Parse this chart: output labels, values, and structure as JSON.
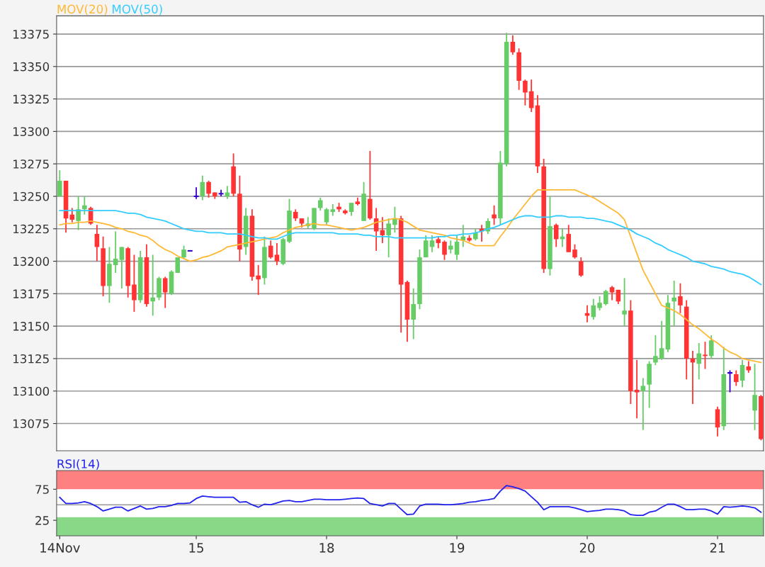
{
  "chart_data": [
    {
      "type": "candlestick",
      "tick_labels": "y",
      "grid": "y",
      "ylim": [
        13054,
        13389
      ],
      "yticks": [
        13075,
        13100,
        13125,
        13150,
        13175,
        13200,
        13225,
        13250,
        13275,
        13300,
        13325,
        13350,
        13375
      ],
      "categories": [
        null,
        null,
        null,
        null,
        null,
        null,
        null,
        null,
        null,
        null,
        null,
        null,
        null,
        null,
        null,
        null,
        null,
        null,
        null,
        null,
        null,
        null,
        null,
        null,
        null,
        null,
        null,
        null,
        null,
        null,
        null,
        null,
        null,
        null,
        null,
        null,
        null,
        null,
        null,
        null,
        null,
        null,
        null,
        null,
        null,
        null,
        null,
        null,
        null,
        null,
        null,
        null,
        null,
        null,
        null,
        null,
        null,
        null,
        null,
        null,
        null,
        null,
        null,
        null,
        null,
        null,
        null,
        null,
        null,
        null,
        null,
        null,
        null,
        null,
        null,
        null,
        null,
        null,
        null,
        null,
        null,
        null,
        null,
        null,
        null,
        null,
        null,
        null,
        null,
        null,
        null,
        null,
        null,
        null,
        null,
        null,
        null,
        null,
        null,
        null,
        null,
        null,
        null,
        null,
        null,
        null,
        null,
        null,
        null,
        null,
        null,
        null,
        null,
        null
      ],
      "ohlc": [
        [
          13250,
          13270,
          13250,
          13262
        ],
        [
          13262,
          13262,
          13222,
          13233
        ],
        [
          13236,
          13241,
          13230,
          13232
        ],
        [
          13231,
          13250,
          13224,
          13240
        ],
        [
          13240,
          13250,
          13236,
          13243
        ],
        [
          13241,
          13242,
          13228,
          13229
        ],
        [
          13221,
          13228,
          13200,
          13211
        ],
        [
          13210,
          13219,
          13173,
          13181
        ],
        [
          13181,
          13211,
          13168,
          13198
        ],
        [
          13197,
          13223,
          13191,
          13202
        ],
        [
          13201,
          13211,
          13179,
          13211
        ],
        [
          13210,
          13211,
          13172,
          13181
        ],
        [
          13182,
          13205,
          13161,
          13170
        ],
        [
          13170,
          13208,
          13168,
          13203
        ],
        [
          13203,
          13213,
          13165,
          13167
        ],
        [
          13169,
          13205,
          13158,
          13172
        ],
        [
          13172,
          13188,
          13170,
          13187
        ],
        [
          13187,
          13188,
          13164,
          13176
        ],
        [
          13175,
          13193,
          13174,
          13192
        ],
        [
          13191,
          13203,
          13191,
          13203
        ],
        [
          13203,
          13212,
          13202,
          13209
        ],
        [
          13208,
          13208,
          13208,
          13208
        ],
        [
          13250,
          13257,
          13248,
          13250
        ],
        [
          13250,
          13266,
          13247,
          13261
        ],
        [
          13261,
          13262,
          13249,
          13252
        ],
        [
          13253,
          13253,
          13248,
          13250
        ],
        [
          13252,
          13255,
          13250,
          13252
        ],
        [
          13250,
          13258,
          13248,
          13253
        ],
        [
          13273,
          13283,
          13250,
          13252
        ],
        [
          13252,
          13266,
          13200,
          13209
        ],
        [
          13211,
          13241,
          13205,
          13235
        ],
        [
          13235,
          13240,
          13185,
          13188
        ],
        [
          13189,
          13197,
          13174,
          13186
        ],
        [
          13187,
          13219,
          13182,
          13211
        ],
        [
          13212,
          13216,
          13202,
          13203
        ],
        [
          13205,
          13214,
          13197,
          13200
        ],
        [
          13198,
          13218,
          13197,
          13217
        ],
        [
          13215,
          13248,
          13214,
          13239
        ],
        [
          13238,
          13240,
          13231,
          13233
        ],
        [
          13233,
          13233,
          13226,
          13229
        ],
        [
          13227,
          13234,
          13225,
          13229
        ],
        [
          13225,
          13241,
          13224,
          13241
        ],
        [
          13241,
          13249,
          13239,
          13247
        ],
        [
          13230,
          13241,
          13228,
          13240
        ],
        [
          13238,
          13244,
          13235,
          13240
        ],
        [
          13242,
          13245,
          13238,
          13240
        ],
        [
          13239,
          13240,
          13236,
          13237
        ],
        [
          13238,
          13245,
          13235,
          13245
        ],
        [
          13246,
          13249,
          13243,
          13244
        ],
        [
          13231,
          13261,
          13231,
          13252
        ],
        [
          13248,
          13285,
          13232,
          13233
        ],
        [
          13233,
          13241,
          13208,
          13223
        ],
        [
          13224,
          13234,
          13214,
          13220
        ],
        [
          13220,
          13233,
          13203,
          13229
        ],
        [
          13228,
          13242,
          13222,
          13233
        ],
        [
          13233,
          13235,
          13145,
          13182
        ],
        [
          13184,
          13185,
          13138,
          13155
        ],
        [
          13155,
          13179,
          13140,
          13167
        ],
        [
          13167,
          13209,
          13163,
          13203
        ],
        [
          13203,
          13220,
          13203,
          13216
        ],
        [
          13211,
          13220,
          13207,
          13216
        ],
        [
          13217,
          13219,
          13210,
          13214
        ],
        [
          13215,
          13216,
          13201,
          13205
        ],
        [
          13209,
          13216,
          13206,
          13212
        ],
        [
          13205,
          13220,
          13201,
          13215
        ],
        [
          13216,
          13228,
          13211,
          13219
        ],
        [
          13218,
          13220,
          13215,
          13216
        ],
        [
          13217,
          13225,
          13216,
          13222
        ],
        [
          13225,
          13228,
          13215,
          13223
        ],
        [
          13223,
          13233,
          13221,
          13231
        ],
        [
          13236,
          13243,
          13228,
          13233
        ],
        [
          13233,
          13285,
          13228,
          13276
        ],
        [
          13275,
          13376,
          13273,
          13369
        ],
        [
          13369,
          13374,
          13359,
          13361
        ],
        [
          13361,
          13364,
          13332,
          13339
        ],
        [
          13339,
          13340,
          13320,
          13330
        ],
        [
          13331,
          13340,
          13315,
          13318
        ],
        [
          13320,
          13328,
          13268,
          13273
        ],
        [
          13273,
          13279,
          13191,
          13194
        ],
        [
          13194,
          13250,
          13189,
          13227
        ],
        [
          13228,
          13229,
          13211,
          13217
        ],
        [
          13217,
          13225,
          13211,
          13219
        ],
        [
          13221,
          13228,
          13207,
          13207
        ],
        [
          13209,
          13213,
          13202,
          13203
        ],
        [
          13200,
          13203,
          13188,
          13189
        ],
        [
          13160,
          13166,
          13153,
          13158
        ],
        [
          13157,
          13171,
          13155,
          13166
        ],
        [
          13164,
          13173,
          13162,
          13168
        ],
        [
          13167,
          13178,
          13166,
          13177
        ],
        [
          13180,
          13181,
          13170,
          13176
        ],
        [
          13178,
          13178,
          13167,
          13169
        ],
        [
          13159,
          13187,
          13150,
          13162
        ],
        [
          13162,
          13170,
          13090,
          13100
        ],
        [
          13101,
          13124,
          13079,
          13099
        ],
        [
          13100,
          13110,
          13070,
          13104
        ],
        [
          13105,
          13123,
          13087,
          13121
        ],
        [
          13122,
          13143,
          13120,
          13127
        ],
        [
          13125,
          13154,
          13124,
          13133
        ],
        [
          13132,
          13174,
          13130,
          13168
        ],
        [
          13169,
          13185,
          13150,
          13172
        ],
        [
          13173,
          13183,
          13160,
          13166
        ],
        [
          13165,
          13170,
          13109,
          13125
        ],
        [
          13125,
          13131,
          13090,
          13122
        ],
        [
          13121,
          13137,
          13109,
          13129
        ],
        [
          13128,
          13138,
          13117,
          13127
        ],
        [
          13127,
          13143,
          13125,
          13139
        ],
        [
          13086,
          13088,
          13065,
          13072
        ],
        [
          13073,
          13134,
          13070,
          13113
        ],
        [
          13114,
          13116,
          13099,
          13114
        ],
        [
          13113,
          13116,
          13104,
          13107
        ],
        [
          13108,
          13124,
          13103,
          13120
        ],
        [
          13119,
          13123,
          13114,
          13116
        ],
        [
          13085,
          13121,
          13070,
          13097
        ],
        [
          13096,
          13097,
          13062,
          13063
        ]
      ],
      "colors": [
        "#66cc66",
        "#ff3333",
        "#ff3333",
        "#66cc66",
        "#66cc66",
        "#ff3333",
        "#ff3333",
        "#ff3333",
        "#66cc66",
        "#66cc66",
        "#66cc66",
        "#ff3333",
        "#ff3333",
        "#66cc66",
        "#ff3333",
        "#66cc66",
        "#66cc66",
        "#ff3333",
        "#66cc66",
        "#66cc66",
        "#66cc66",
        "#3300cc",
        "#3300cc",
        "#66cc66",
        "#ff3333",
        "#ff3333",
        "#3300cc",
        "#66cc66",
        "#ff3333",
        "#ff3333",
        "#66cc66",
        "#ff3333",
        "#ff3333",
        "#66cc66",
        "#ff3333",
        "#ff3333",
        "#66cc66",
        "#66cc66",
        "#ff3333",
        "#ff3333",
        "#66cc66",
        "#66cc66",
        "#66cc66",
        "#66cc66",
        "#66cc66",
        "#ff3333",
        "#ff3333",
        "#66cc66",
        "#ff3333",
        "#66cc66",
        "#ff3333",
        "#ff3333",
        "#ff3333",
        "#66cc66",
        "#66cc66",
        "#ff3333",
        "#ff3333",
        "#66cc66",
        "#66cc66",
        "#66cc66",
        "#66cc66",
        "#ff3333",
        "#ff3333",
        "#66cc66",
        "#66cc66",
        "#66cc66",
        "#ff3333",
        "#66cc66",
        "#ff3333",
        "#66cc66",
        "#ff3333",
        "#66cc66",
        "#66cc66",
        "#ff3333",
        "#ff3333",
        "#ff3333",
        "#ff3333",
        "#ff3333",
        "#ff3333",
        "#66cc66",
        "#ff3333",
        "#66cc66",
        "#ff3333",
        "#ff3333",
        "#ff3333",
        "#ff3333",
        "#66cc66",
        "#66cc66",
        "#66cc66",
        "#ff3333",
        "#ff3333",
        "#66cc66",
        "#ff3333",
        "#ff3333",
        "#66cc66",
        "#66cc66",
        "#66cc66",
        "#66cc66",
        "#66cc66",
        "#66cc66",
        "#ff3333",
        "#ff3333",
        "#ff3333",
        "#66cc66",
        "#ff3333",
        "#66cc66",
        "#ff3333",
        "#66cc66",
        "#3300cc",
        "#ff3333",
        "#66cc66",
        "#ff3333",
        "#66cc66",
        "#ff3333"
      ],
      "series": [
        {
          "type": "line",
          "name": "MOV(20)",
          "color": "#ffb833",
          "values": [
            13228,
            13229,
            13229,
            13230,
            13230,
            13231,
            13230,
            13229,
            13228,
            13226,
            13225,
            13223,
            13222,
            13220,
            13219,
            13216,
            13212,
            13209,
            13207,
            13204,
            13202,
            13200,
            13201,
            13203,
            13204,
            13206,
            13208,
            13211,
            13212,
            13213,
            13214,
            13215,
            13216,
            13217,
            13218,
            13219,
            13222,
            13224,
            13226,
            13227,
            13228,
            13229,
            13228,
            13228,
            13227,
            13226,
            13225,
            13224,
            13225,
            13226,
            13228,
            13230,
            13231,
            13232,
            13233,
            13232,
            13230,
            13227,
            13224,
            13223,
            13222,
            13221,
            13220,
            13218,
            13217,
            13216,
            13214,
            13212,
            13212,
            13212,
            13212,
            13219,
            13225,
            13232,
            13238,
            13244,
            13250,
            13255,
            13255,
            13255,
            13255,
            13255,
            13255,
            13255,
            13253,
            13251,
            13249,
            13246,
            13243,
            13240,
            13237,
            13232,
            13219,
            13206,
            13193,
            13184,
            13175,
            13166,
            13164,
            13162,
            13159,
            13155,
            13151,
            13148,
            13144,
            13140,
            13137,
            13133,
            13130,
            13128,
            13125,
            13124,
            13123,
            13122
          ]
        },
        {
          "type": "line",
          "name": "MOV(50)",
          "color": "#33ccff",
          "values": [
            13239,
            13239,
            13239,
            13239,
            13239,
            13239,
            13239,
            13239,
            13239,
            13239,
            13238,
            13237,
            13237,
            13236,
            13234,
            13233,
            13232,
            13231,
            13229,
            13227,
            13225,
            13224,
            13223,
            13223,
            13222,
            13222,
            13222,
            13221,
            13221,
            13221,
            13220,
            13219,
            13218,
            13218,
            13217,
            13217,
            13219,
            13221,
            13222,
            13222,
            13222,
            13222,
            13222,
            13222,
            13222,
            13221,
            13221,
            13221,
            13221,
            13220,
            13220,
            13219,
            13219,
            13219,
            13218,
            13218,
            13218,
            13218,
            13218,
            13218,
            13218,
            13219,
            13219,
            13220,
            13220,
            13221,
            13221,
            13222,
            13223,
            13225,
            13226,
            13228,
            13230,
            13232,
            13234,
            13235,
            13235,
            13234,
            13234,
            13234,
            13235,
            13235,
            13234,
            13234,
            13234,
            13233,
            13233,
            13232,
            13231,
            13230,
            13228,
            13226,
            13224,
            13221,
            13219,
            13217,
            13214,
            13212,
            13209,
            13207,
            13205,
            13203,
            13200,
            13199,
            13198,
            13196,
            13195,
            13194,
            13192,
            13191,
            13190,
            13188,
            13185,
            13182
          ]
        }
      ]
    },
    {
      "type": "line",
      "ylim": [
        0,
        105
      ],
      "yticks": [
        25,
        75
      ],
      "categories": [
        "14Nov",
        null,
        null,
        null,
        null,
        null,
        null,
        null,
        null,
        null,
        null,
        null,
        null,
        null,
        null,
        null,
        null,
        null,
        null,
        null,
        null,
        null,
        "15",
        null,
        null,
        null,
        null,
        null,
        null,
        null,
        null,
        null,
        null,
        null,
        null,
        null,
        null,
        null,
        null,
        null,
        null,
        null,
        null,
        "18",
        null,
        null,
        null,
        null,
        null,
        null,
        null,
        null,
        null,
        null,
        null,
        null,
        null,
        null,
        null,
        null,
        null,
        null,
        null,
        null,
        "19",
        null,
        null,
        null,
        null,
        null,
        null,
        null,
        null,
        null,
        null,
        null,
        null,
        null,
        null,
        null,
        null,
        null,
        null,
        null,
        null,
        "20",
        null,
        null,
        null,
        null,
        null,
        null,
        null,
        null,
        null,
        null,
        null,
        null,
        null,
        null,
        null,
        null,
        null,
        null,
        null,
        null,
        "21",
        null,
        null,
        null,
        null,
        null,
        null,
        null
      ],
      "bands": [
        {
          "axis": "y",
          "from": 75,
          "to": 105,
          "color": "#ff8080"
        },
        {
          "axis": "y",
          "from": 0,
          "to": 30,
          "color": "#88d888"
        }
      ],
      "ref_lines": [
        {
          "axis": "y",
          "value": 50,
          "color": "#999999"
        }
      ],
      "series": [
        {
          "name": "RSI(14)",
          "color": "#2222ee",
          "values": [
            62,
            52,
            52,
            53,
            55,
            52,
            47,
            40,
            43,
            46,
            46,
            40,
            44,
            48,
            43,
            44,
            47,
            47,
            49,
            52,
            52,
            53,
            60,
            64,
            63,
            62,
            62,
            62,
            62,
            54,
            55,
            50,
            46,
            51,
            50,
            53,
            56,
            57,
            55,
            55,
            57,
            59,
            59,
            58,
            58,
            58,
            59,
            60,
            61,
            60,
            52,
            50,
            48,
            52,
            52,
            43,
            34,
            35,
            48,
            51,
            51,
            51,
            50,
            50,
            51,
            52,
            54,
            55,
            57,
            58,
            60,
            72,
            81,
            79,
            76,
            72,
            63,
            54,
            42,
            47,
            47,
            47,
            47,
            45,
            42,
            39,
            40,
            41,
            43,
            43,
            42,
            40,
            34,
            33,
            33,
            38,
            40,
            46,
            51,
            51,
            47,
            42,
            42,
            43,
            43,
            40,
            35,
            47,
            46,
            47,
            48,
            47,
            45,
            38
          ]
        }
      ]
    }
  ]
}
